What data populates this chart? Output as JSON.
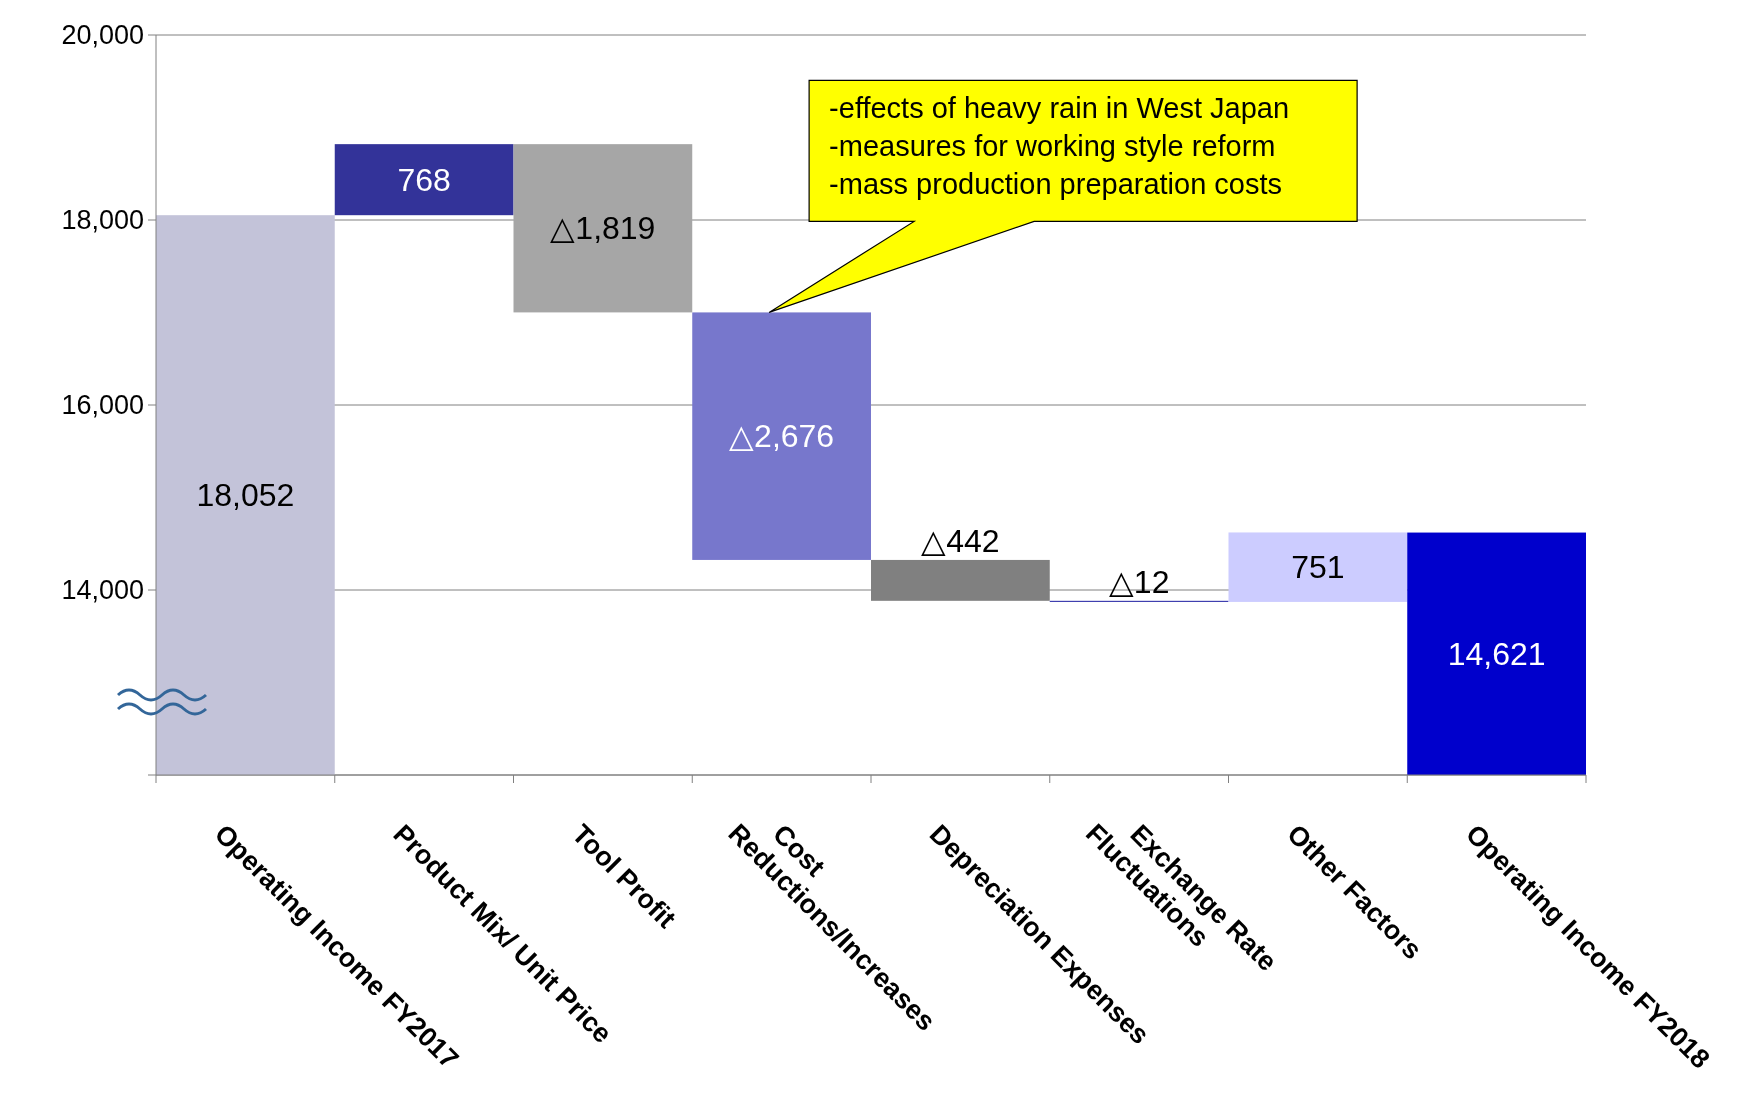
{
  "chart_data": {
    "type": "bar",
    "categories": [
      "Operating Income FY2017",
      "Product Mix/ Unit Price",
      "Tool Profit",
      "Cost\nReductions/Increases",
      "Depreciation Expenses",
      "Exchange Rate\nFluctuations",
      "Other Factors",
      "Operating Income FY2018"
    ],
    "values": [
      6052,
      768,
      -1819,
      -2676,
      -442,
      -12,
      751,
      2621
    ],
    "base": [
      12000,
      18052,
      18820,
      17001,
      14325,
      13883,
      13871,
      12000
    ],
    "colors": [
      "#c3c3d9",
      "#333399",
      "#a6a6a6",
      "#7777cc",
      "#808080",
      "#3333aa",
      "#ccccff",
      "#0000cc"
    ],
    "value_labels": [
      "18,052",
      "768",
      "△1,819",
      "△2,676",
      "△442",
      "△12",
      "751",
      "14,621"
    ],
    "ylim": [
      12000,
      20000
    ],
    "yticks": [
      {
        "value": 12000,
        "label": null
      },
      {
        "value": 14000,
        "label": "14,000"
      },
      {
        "value": 16000,
        "label": "16,000"
      },
      {
        "value": 18000,
        "label": "18,000"
      },
      {
        "value": 20000,
        "label": "20,000"
      }
    ],
    "grid": "y",
    "annotations": [
      "-effects of heavy rain in West Japan\n-measures for working style reform\n-mass production preparation costs"
    ]
  }
}
